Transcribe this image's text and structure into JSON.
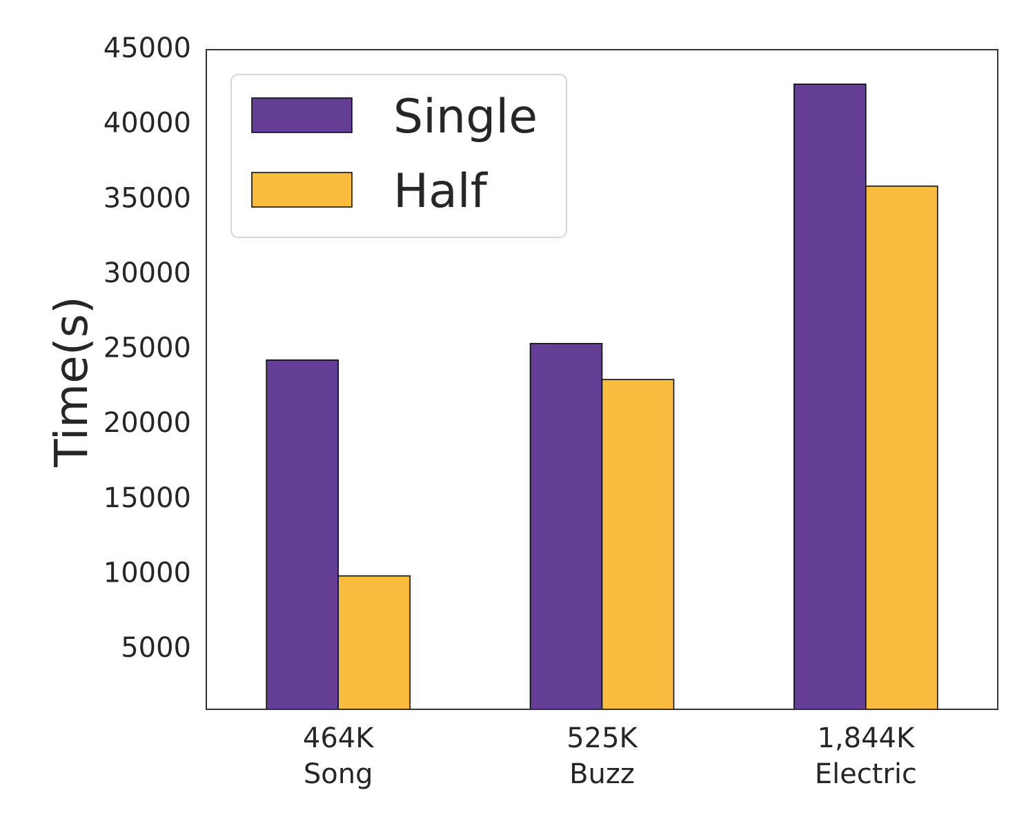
{
  "chart_data": {
    "type": "bar",
    "categories": [
      {
        "line1": "464K",
        "line2": "Song"
      },
      {
        "line1": "525K",
        "line2": "Buzz"
      },
      {
        "line1": "1,844K",
        "line2": "Electric"
      }
    ],
    "series": [
      {
        "name": "Single",
        "color": "#643f95",
        "values": [
          24300,
          25400,
          42700
        ]
      },
      {
        "name": "Half",
        "color": "#f9bc3e",
        "values": [
          9900,
          23000,
          35900
        ]
      }
    ],
    "ylabel": "Time(s)",
    "ylim": [
      1000,
      45000
    ],
    "yticks": [
      5000,
      10000,
      15000,
      20000,
      25000,
      30000,
      35000,
      40000,
      45000
    ],
    "grid": false,
    "legend_position": "top-left"
  }
}
